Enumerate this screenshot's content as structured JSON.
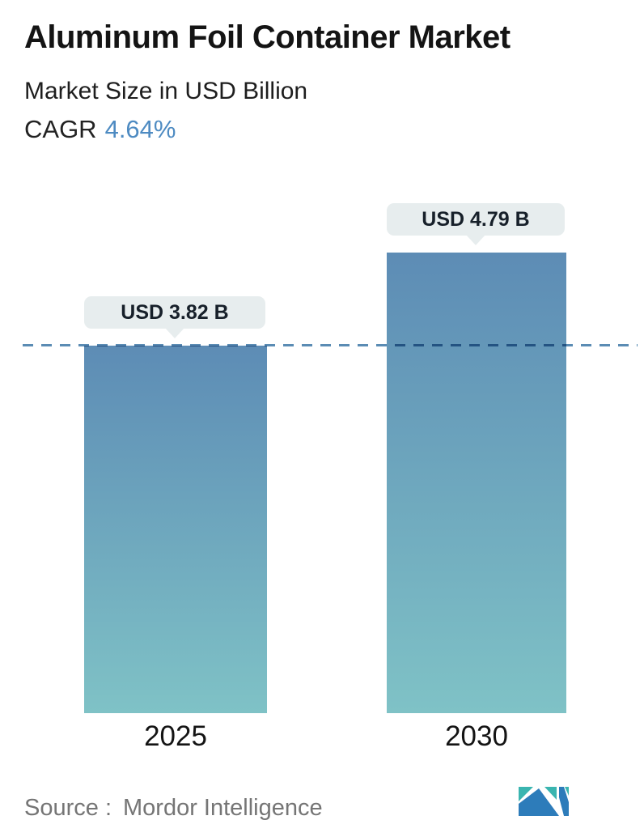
{
  "header": {
    "title": "Aluminum Foil Container Market",
    "subtitle": "Market Size in USD Billion",
    "cagr_label": "CAGR",
    "cagr_value": "4.64%"
  },
  "chart_data": {
    "type": "bar",
    "title": "Aluminum Foil Container Market",
    "subtitle": "Market Size in USD Billion",
    "unit": "USD Billion",
    "categories": [
      "2025",
      "2030"
    ],
    "values": [
      3.82,
      4.79
    ],
    "value_labels": [
      "USD 3.82 B",
      "USD 4.79 B"
    ],
    "cagr_percent": 4.64,
    "ylim": [
      0,
      6
    ],
    "grid": false,
    "legend": false,
    "reference_line": {
      "value": 3.82,
      "style": "dashed"
    }
  },
  "footer": {
    "source_label": "Source :",
    "source_value": "Mordor Intelligence",
    "logo": "mordor-intelligence-logo"
  },
  "colors": {
    "accent_blue": "#4e8bc2",
    "bar_gradient_top": "#5d8cb5",
    "bar_gradient_bottom": "#7fc2c6",
    "dashed_line": "#5b8cb4",
    "tooltip_bg": "#e7edee",
    "source_text": "#757575",
    "logo_blue": "#2d7cba",
    "logo_teal": "#3ab5b0"
  }
}
